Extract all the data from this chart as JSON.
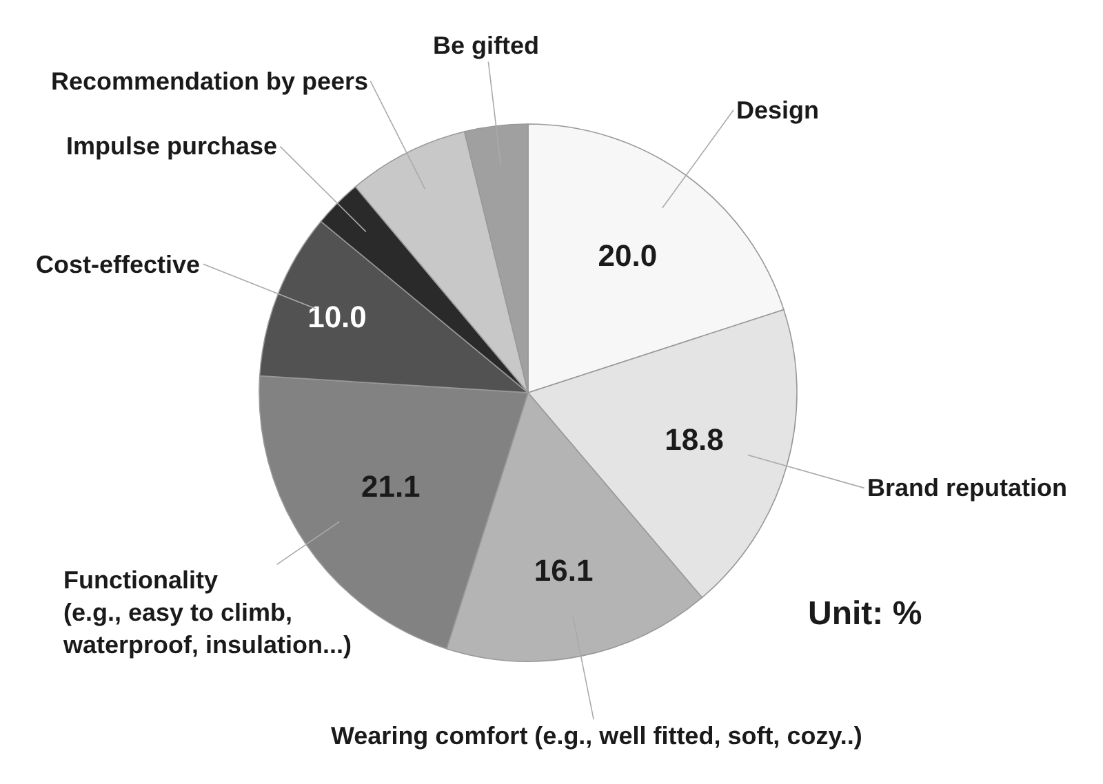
{
  "chart_data": {
    "type": "pie",
    "categories": [
      "Design",
      "Brand reputation",
      "Wearing comfort (e.g., well fitted, soft, cozy..)",
      "Functionality\n(e.g., easy to climb,\nwaterproof, insulation...)",
      "Cost-effective",
      "Impulse purchase",
      "Recommendation by peers",
      "Be gifted"
    ],
    "values": [
      20.0,
      18.8,
      16.1,
      21.1,
      10.0,
      2.9,
      7.3,
      3.8
    ],
    "colors": [
      "#f7f7f7",
      "#e4e4e4",
      "#b4b4b4",
      "#828282",
      "#525252",
      "#2a2a2a",
      "#c8c8c8",
      "#a0a0a0"
    ],
    "value_labels": [
      "20.0",
      "18.8",
      "16.1",
      "21.1",
      "10.0",
      null,
      null,
      null
    ],
    "annotations": [
      "Unit: %"
    ]
  }
}
